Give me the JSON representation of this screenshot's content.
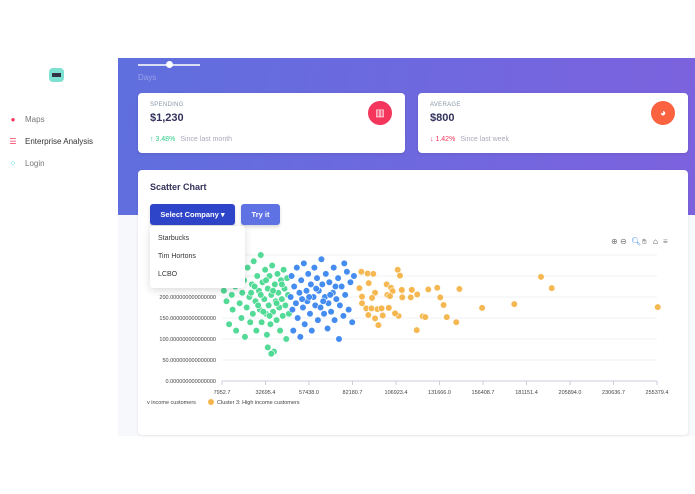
{
  "sidebar": {
    "items": [
      {
        "label": "Maps",
        "icon": "map-pin-icon"
      },
      {
        "label": "Enterprise Analysis",
        "icon": "list-icon"
      },
      {
        "label": "Login",
        "icon": "key-icon"
      }
    ]
  },
  "header": {
    "slider_label": "Days",
    "slider_value": 0.5
  },
  "stats": [
    {
      "label": "SPENDING",
      "value": "$1,230",
      "change": "3.48%",
      "direction": "up",
      "since": "Since last month",
      "icon": "bar-chart-icon",
      "color": "#f5365c"
    },
    {
      "label": "AVERAGE",
      "value": "$800",
      "change": "1.42%",
      "direction": "down",
      "since": "Since last week",
      "icon": "pie-chart-icon",
      "color": "#fb6340"
    }
  ],
  "card": {
    "title": "Scatter Chart",
    "select_label": "Select Company",
    "try_label": "Try it",
    "dropdown": [
      "Starbucks",
      "Tim Hortons",
      "LCBO"
    ],
    "toolbar": [
      "zoom-in-icon",
      "zoom-out-icon",
      "zoom-select-icon",
      "pan-icon",
      "home-icon",
      "menu-icon"
    ]
  },
  "chart_data": {
    "type": "scatter",
    "xticks": [
      "7952.7",
      "32695.4",
      "57438.0",
      "82180.7",
      "106923.4",
      "131666.0",
      "156408.7",
      "181151.4",
      "205894.0",
      "230636.7",
      "255379.4"
    ],
    "yticks": [
      "0.000000000000000",
      "50.000000000000000",
      "100.000000000000000",
      "150.000000000000000",
      "200.000000000000000"
    ],
    "xlim": [
      7952.7,
      255379.4
    ],
    "ylim": [
      0,
      300
    ],
    "grid": true,
    "legend": "bottom-left",
    "series": [
      {
        "name": "v income customers",
        "color": "#4ad991",
        "points": [
          [
            9000,
            215
          ],
          [
            10500,
            190
          ],
          [
            11000,
            240
          ],
          [
            12000,
            135
          ],
          [
            13500,
            205
          ],
          [
            14000,
            170
          ],
          [
            15500,
            225
          ],
          [
            16000,
            120
          ],
          [
            17000,
            255
          ],
          [
            18000,
            185
          ],
          [
            19000,
            150
          ],
          [
            19500,
            210
          ],
          [
            20500,
            240
          ],
          [
            21000,
            105
          ],
          [
            22000,
            175
          ],
          [
            22500,
            270
          ],
          [
            23500,
            200
          ],
          [
            24000,
            140
          ],
          [
            25000,
            230
          ],
          [
            25500,
            160
          ],
          [
            26000,
            285
          ],
          [
            27000,
            190
          ],
          [
            27500,
            120
          ],
          [
            28000,
            250
          ],
          [
            29000,
            215
          ],
          [
            29500,
            170
          ],
          [
            30000,
            300
          ],
          [
            30500,
            140
          ],
          [
            31000,
            235
          ],
          [
            32000,
            195
          ],
          [
            32500,
            265
          ],
          [
            33000,
            160
          ],
          [
            33500,
            110
          ],
          [
            34000,
            220
          ],
          [
            34500,
            180
          ],
          [
            35000,
            250
          ],
          [
            35500,
            135
          ],
          [
            36000,
            205
          ],
          [
            36500,
            275
          ],
          [
            37000,
            165
          ],
          [
            37500,
            70
          ],
          [
            38000,
            230
          ],
          [
            38500,
            190
          ],
          [
            39000,
            145
          ],
          [
            39500,
            255
          ],
          [
            40000,
            210
          ],
          [
            40500,
            175
          ],
          [
            41000,
            120
          ],
          [
            41500,
            240
          ],
          [
            42000,
            195
          ],
          [
            42500,
            155
          ],
          [
            43000,
            265
          ],
          [
            43500,
            220
          ],
          [
            44000,
            180
          ],
          [
            44500,
            100
          ],
          [
            45000,
            245
          ],
          [
            45500,
            205
          ],
          [
            46000,
            160
          ],
          [
            36000,
            65
          ],
          [
            34000,
            80
          ],
          [
            24500,
            210
          ],
          [
            28500,
            180
          ],
          [
            31500,
            165
          ],
          [
            37000,
            215
          ],
          [
            33000,
            240
          ],
          [
            26500,
            225
          ],
          [
            39000,
            185
          ],
          [
            42000,
            230
          ],
          [
            30000,
            205
          ],
          [
            35000,
            155
          ]
        ]
      },
      {
        "color": "#3a86ef",
        "points": [
          [
            47000,
            200
          ],
          [
            47500,
            250
          ],
          [
            48000,
            170
          ],
          [
            48500,
            120
          ],
          [
            49000,
            225
          ],
          [
            50000,
            185
          ],
          [
            50500,
            270
          ],
          [
            51000,
            150
          ],
          [
            52000,
            210
          ],
          [
            52500,
            105
          ],
          [
            53000,
            240
          ],
          [
            54000,
            175
          ],
          [
            54500,
            280
          ],
          [
            55000,
            135
          ],
          [
            56000,
            215
          ],
          [
            56500,
            190
          ],
          [
            57000,
            255
          ],
          [
            58000,
            160
          ],
          [
            58500,
            230
          ],
          [
            59000,
            120
          ],
          [
            60000,
            200
          ],
          [
            60500,
            270
          ],
          [
            61000,
            180
          ],
          [
            62000,
            245
          ],
          [
            62500,
            145
          ],
          [
            63000,
            215
          ],
          [
            64000,
            175
          ],
          [
            64500,
            290
          ],
          [
            65000,
            230
          ],
          [
            66000,
            160
          ],
          [
            66500,
            200
          ],
          [
            67000,
            255
          ],
          [
            68000,
            125
          ],
          [
            68500,
            185
          ],
          [
            69000,
            235
          ],
          [
            70000,
            165
          ],
          [
            71000,
            210
          ],
          [
            71500,
            270
          ],
          [
            72000,
            145
          ],
          [
            73000,
            195
          ],
          [
            74000,
            245
          ],
          [
            74500,
            100
          ],
          [
            75000,
            180
          ],
          [
            76000,
            225
          ],
          [
            77000,
            155
          ],
          [
            77500,
            280
          ],
          [
            78000,
            205
          ],
          [
            79000,
            260
          ],
          [
            80000,
            170
          ],
          [
            81000,
            235
          ],
          [
            82000,
            140
          ],
          [
            83000,
            250
          ],
          [
            57500,
            200
          ],
          [
            61500,
            220
          ],
          [
            65500,
            190
          ],
          [
            69500,
            205
          ],
          [
            53500,
            195
          ],
          [
            72500,
            225
          ]
        ]
      },
      {
        "name": "Cluster 3: High income customers",
        "color": "#f5b54a",
        "points": [
          [
            107900,
            265
          ],
          [
            109200,
            251
          ],
          [
            101600,
            230
          ],
          [
            104100,
            222
          ],
          [
            105000,
            214
          ],
          [
            102000,
            205
          ],
          [
            103500,
            202
          ],
          [
            110300,
            215
          ],
          [
            110500,
            199
          ],
          [
            116000,
            217
          ],
          [
            115300,
            199
          ],
          [
            119000,
            206
          ],
          [
            125300,
            218
          ],
          [
            130400,
            222
          ],
          [
            132100,
            199
          ],
          [
            134000,
            181
          ],
          [
            143000,
            219
          ],
          [
            103000,
            175
          ],
          [
            98600,
            173
          ],
          [
            99400,
            156
          ],
          [
            106200,
            161
          ],
          [
            108400,
            155
          ],
          [
            122100,
            154
          ],
          [
            123600,
            152
          ],
          [
            135800,
            152
          ],
          [
            118700,
            121
          ],
          [
            141200,
            140
          ],
          [
            155900,
            174
          ],
          [
            174200,
            183
          ],
          [
            189400,
            248
          ],
          [
            195500,
            221
          ],
          [
            255800,
            176
          ],
          [
            87200,
            260
          ],
          [
            90800,
            256
          ],
          [
            94000,
            255
          ],
          [
            86100,
            221
          ],
          [
            91400,
            233
          ],
          [
            95000,
            210
          ],
          [
            93300,
            198
          ],
          [
            87600,
            185
          ],
          [
            90000,
            173
          ],
          [
            93000,
            173
          ],
          [
            96400,
            171
          ],
          [
            98700,
            173
          ],
          [
            91200,
            157
          ],
          [
            95000,
            149
          ],
          [
            96900,
            133
          ],
          [
            87600,
            201
          ],
          [
            102800,
            174
          ],
          [
            106400,
            161
          ],
          [
            110200,
            217
          ],
          [
            115900,
            217
          ]
        ]
      }
    ]
  }
}
